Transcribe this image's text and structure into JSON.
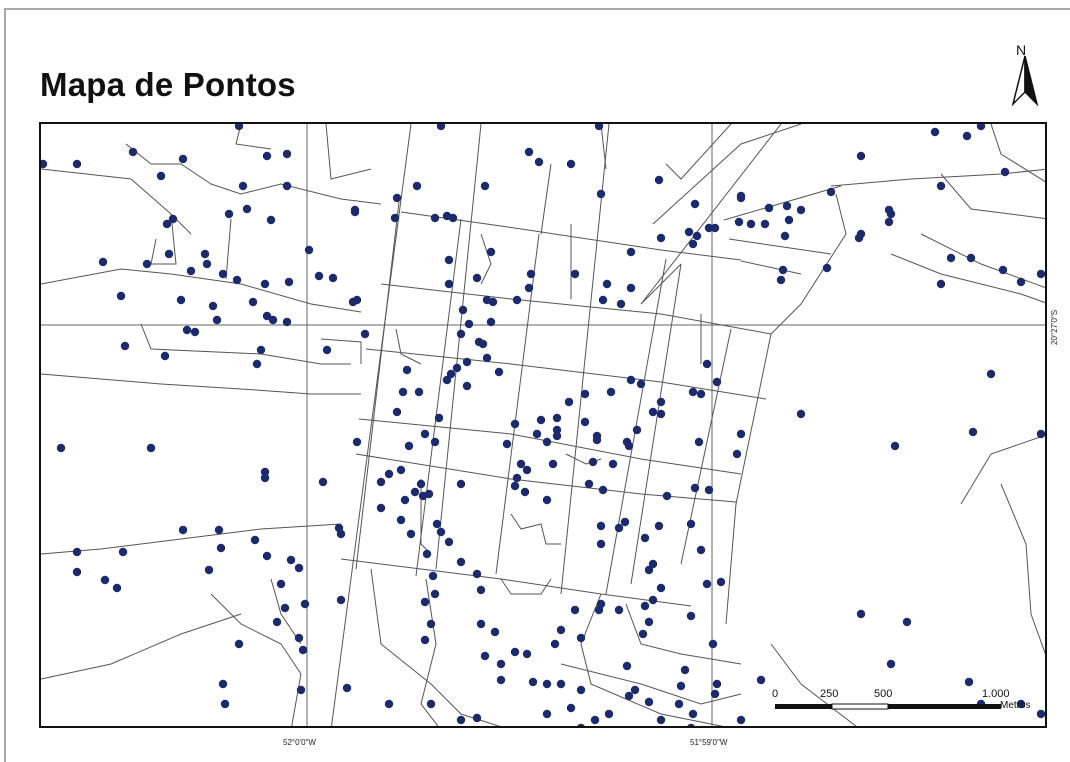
{
  "title": "Mapa de Pontos",
  "north_arrow": {
    "label": "N",
    "icon": "north-arrow-icon"
  },
  "graticule": {
    "lon_labels": [
      "52°0'0\"W",
      "51°59'0\"W"
    ],
    "lat_label": "20°27'0\"S"
  },
  "scale_bar": {
    "ticks": [
      "0",
      "250",
      "500",
      "1.000"
    ],
    "unit": "Metros"
  },
  "colors": {
    "point": "#1c2a6e",
    "road": "#555555",
    "frame": "#111111"
  }
}
